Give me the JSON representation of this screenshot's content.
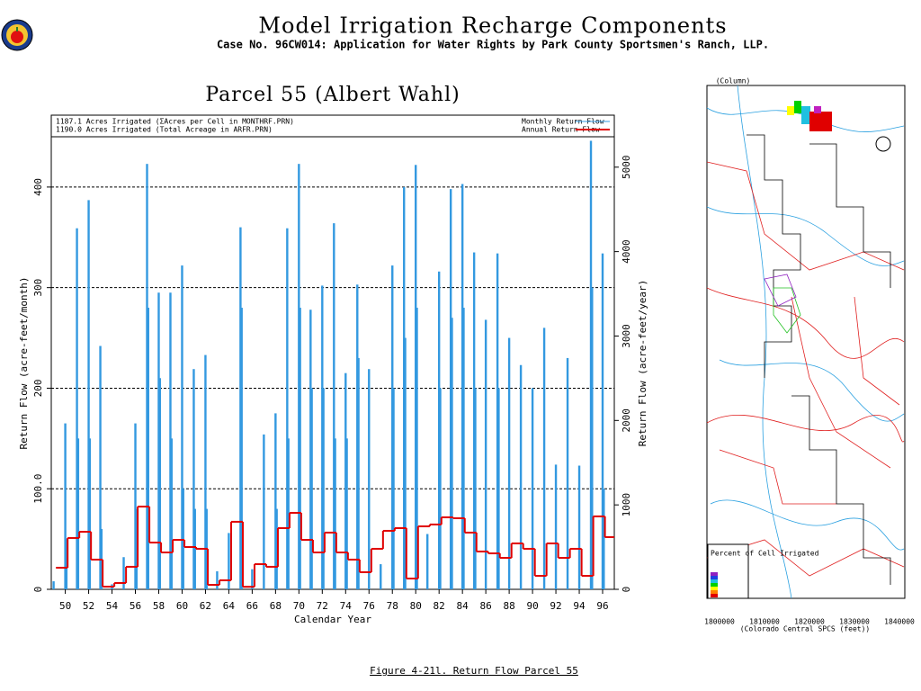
{
  "header": {
    "title": "Model Irrigation Recharge Components",
    "subtitle": "Case No. 96CW014: Application for Water Rights by Park County Sportsmen's Ranch, LLP."
  },
  "caption": "Figure 4-21l.  Return Flow Parcel 55",
  "chart_data": {
    "type": "bar",
    "title": "Parcel 55 (Albert Wahl)",
    "annotations": [
      "1187.1 Acres Irrigated (ΣAcres per Cell in MONTHRF.PRN)",
      "1190.0 Acres Irrigated (Total Acreage in ARFR.PRN)"
    ],
    "x_label": "Calendar Year",
    "y_label": "Return Flow (acre-feet/month)",
    "y2_label": "Return Flow (acre-feet/year)",
    "xlim": [
      48.8,
      97.0
    ],
    "xticks": [
      50,
      52,
      54,
      56,
      58,
      60,
      62,
      64,
      66,
      68,
      70,
      72,
      74,
      76,
      78,
      80,
      82,
      84,
      86,
      88,
      90,
      92,
      94,
      96
    ],
    "ylim": [
      0,
      450
    ],
    "yticks": [
      0,
      {
        "value": 100,
        "label": "100.0"
      },
      200,
      300,
      400
    ],
    "y2lim": [
      0,
      5360
    ],
    "y2ticks": [
      0,
      1000,
      2000,
      3000,
      4000,
      5000
    ],
    "grid": true,
    "series": [
      {
        "name": "Monthly Return Flow",
        "color": "#3399e0",
        "type": "bar",
        "x": [
          49,
          50,
          50.1,
          51,
          51.1,
          52,
          52.1,
          53,
          53.1,
          54,
          55,
          56,
          56.1,
          57,
          57.1,
          58,
          58.1,
          59,
          59.1,
          60,
          60.1,
          61,
          61.1,
          62,
          62.1,
          63,
          64,
          65,
          65.1,
          66,
          67,
          68,
          68.1,
          69,
          69.1,
          70,
          70.1,
          71,
          71.1,
          72,
          72.1,
          73,
          73.1,
          74,
          74.1,
          75,
          75.1,
          76,
          77,
          78,
          78.1,
          79,
          79.1,
          80,
          80.1,
          81,
          82,
          82.1,
          83,
          83.1,
          84,
          84.1,
          85,
          85.1,
          86,
          87,
          87.1,
          88,
          89,
          90,
          91,
          92,
          93,
          94,
          95,
          95.1,
          96,
          96.1
        ],
        "values": [
          8,
          165,
          50,
          359,
          150,
          387,
          150,
          242,
          60,
          5,
          32,
          165,
          80,
          423,
          280,
          295,
          210,
          295,
          150,
          322,
          100,
          219,
          80,
          233,
          80,
          18,
          56,
          360,
          280,
          20,
          154,
          175,
          80,
          359,
          150,
          423,
          280,
          278,
          200,
          302,
          200,
          364,
          150,
          215,
          150,
          303,
          230,
          219,
          25,
          322,
          200,
          400,
          250,
          422,
          280,
          55,
          316,
          200,
          398,
          270,
          403,
          280,
          335,
          200,
          268,
          334,
          200,
          250,
          223,
          200,
          260,
          124,
          230,
          123,
          446,
          300,
          334,
          100
        ]
      },
      {
        "name": "Annual Return Flow",
        "color": "#e00000",
        "type": "step",
        "axis": "y2",
        "x": [
          49,
          50,
          51,
          52,
          53,
          54,
          55,
          56,
          57,
          58,
          59,
          60,
          61,
          62,
          63,
          64,
          65,
          66,
          67,
          68,
          69,
          70,
          71,
          72,
          73,
          74,
          75,
          76,
          77,
          78,
          79,
          80,
          81,
          82,
          83,
          84,
          85,
          86,
          87,
          88,
          89,
          90,
          91,
          92,
          93,
          94,
          95,
          96
        ],
        "values": [
          256,
          608,
          682,
          352,
          32,
          75,
          267,
          980,
          554,
          437,
          586,
          501,
          480,
          53,
          107,
          800,
          30,
          298,
          267,
          725,
          906,
          586,
          437,
          672,
          437,
          352,
          203,
          480,
          693,
          725,
          128,
          746,
          768,
          853,
          842,
          672,
          448,
          426,
          373,
          544,
          480,
          160,
          544,
          373,
          480,
          160,
          864,
          618
        ]
      }
    ]
  },
  "map": {
    "column_label": "(Column)",
    "legend_title": "Percent of Cell Irrigated",
    "x_axis_label": "(Colorado Central SPCS (feet))",
    "xticks": [
      "1800000",
      "1810000",
      "1820000",
      "1830000",
      "1840000"
    ]
  }
}
